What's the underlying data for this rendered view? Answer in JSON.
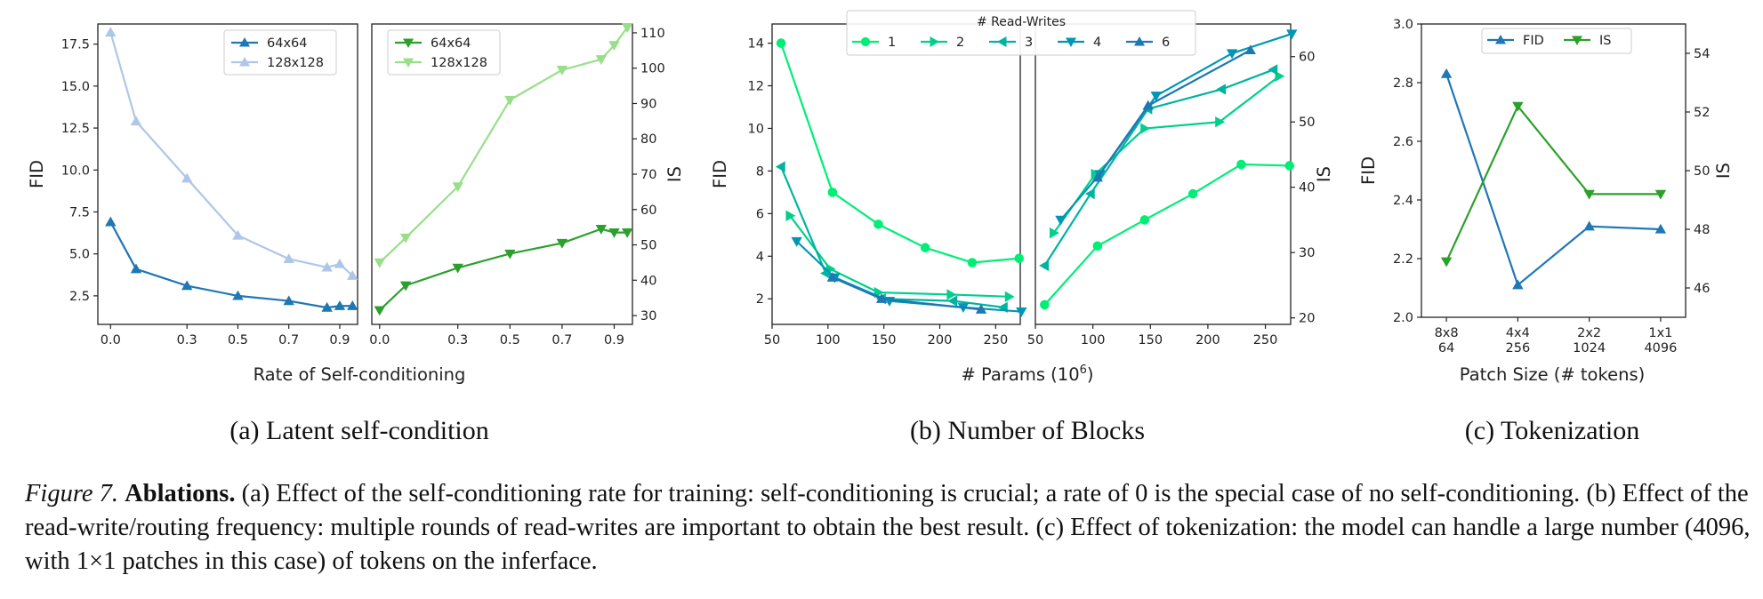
{
  "figure": {
    "label": "Figure 7.",
    "bold": "Ablations.",
    "text": "(a) Effect of the self-conditioning rate for training: self-conditioning is crucial; a rate of 0 is the special case of no self-conditioning. (b) Effect of the read-write/routing frequency: multiple rounds of read-writes are important to obtain the best result. (c) Effect of tokenization: the model can handle a large number (4096, with 1×1 patches in this case) of tokens on the inferface."
  },
  "subcaptions": [
    "(a) Latent self-condition",
    "(b) Number of Blocks",
    "(c) Tokenization"
  ],
  "chart_data": [
    {
      "id": "a-fid",
      "type": "line",
      "ylabel": "FID",
      "ylim": [
        0.8,
        18.7
      ],
      "xlim": [
        -0.05,
        0.97
      ],
      "xticks": [
        "0.0",
        "0.3",
        "0.5",
        "0.7",
        "0.9"
      ],
      "xtick_values": [
        0.0,
        0.3,
        0.5,
        0.7,
        0.9
      ],
      "yticks": [
        "2.5",
        "5.0",
        "7.5",
        "10.0",
        "12.5",
        "15.0",
        "17.5"
      ],
      "ytick_values": [
        2.5,
        5.0,
        7.5,
        10.0,
        12.5,
        15.0,
        17.5
      ],
      "legend": "top-right",
      "series": [
        {
          "name": "64x64",
          "color": "#1f77b4",
          "marker": "triangle-up",
          "x": [
            0.0,
            0.1,
            0.3,
            0.5,
            0.7,
            0.85,
            0.9,
            0.95
          ],
          "y": [
            6.9,
            4.1,
            3.1,
            2.5,
            2.2,
            1.8,
            1.9,
            1.9
          ]
        },
        {
          "name": "128x128",
          "color": "#aec7e8",
          "marker": "triangle-up",
          "x": [
            0.0,
            0.1,
            0.3,
            0.5,
            0.7,
            0.85,
            0.9,
            0.95
          ],
          "y": [
            18.2,
            12.9,
            9.5,
            6.1,
            4.7,
            4.2,
            4.4,
            3.7
          ]
        }
      ]
    },
    {
      "id": "a-is",
      "type": "line",
      "ylabel": "IS",
      "ylim": [
        27.5,
        112.5
      ],
      "xlim": [
        -0.03,
        0.97
      ],
      "xticks": [
        "0.0",
        "0.3",
        "0.5",
        "0.7",
        "0.9"
      ],
      "xtick_values": [
        0.0,
        0.3,
        0.5,
        0.7,
        0.9
      ],
      "yticks": [
        "30",
        "40",
        "50",
        "60",
        "70",
        "80",
        "90",
        "100",
        "110"
      ],
      "ytick_values": [
        30,
        40,
        50,
        60,
        70,
        80,
        90,
        100,
        110
      ],
      "legend": "top-left",
      "series": [
        {
          "name": "64x64",
          "color": "#2ca02c",
          "marker": "triangle-down",
          "x": [
            0.0,
            0.1,
            0.3,
            0.5,
            0.7,
            0.85,
            0.9,
            0.95
          ],
          "y": [
            31.5,
            38.5,
            43.5,
            47.5,
            50.5,
            54.5,
            53.5,
            53.5
          ]
        },
        {
          "name": "128x128",
          "color": "#98df8a",
          "marker": "triangle-down",
          "x": [
            0.0,
            0.1,
            0.3,
            0.5,
            0.7,
            0.85,
            0.9,
            0.95
          ],
          "y": [
            45.0,
            52.0,
            66.5,
            91.0,
            99.5,
            102.5,
            106.5,
            111.5
          ]
        }
      ]
    },
    {
      "id": "b-fid",
      "type": "line",
      "ylabel": "FID",
      "ylim": [
        0.8,
        14.9
      ],
      "xlim": [
        50,
        272
      ],
      "xticks": [
        "50",
        "100",
        "150",
        "200",
        "250"
      ],
      "xtick_values": [
        50,
        100,
        150,
        200,
        250
      ],
      "yticks": [
        "2",
        "4",
        "6",
        "8",
        "10",
        "12",
        "14"
      ],
      "ytick_values": [
        2,
        4,
        6,
        8,
        10,
        12,
        14
      ],
      "series": [
        {
          "name": "1",
          "color": "#00ee76",
          "marker": "circle",
          "x": [
            58,
            104,
            145,
            187,
            229,
            271
          ],
          "y": [
            14.0,
            7.0,
            5.5,
            4.4,
            3.7,
            3.9
          ]
        },
        {
          "name": "2",
          "color": "#00d08c",
          "marker": "triangle-right",
          "x": [
            66,
            102,
            145,
            210,
            262
          ],
          "y": [
            5.9,
            3.4,
            2.3,
            2.2,
            2.1
          ]
        },
        {
          "name": "3",
          "color": "#00b4a0",
          "marker": "triangle-left",
          "x": [
            58,
            98,
            148,
            212,
            257
          ],
          "y": [
            8.2,
            3.2,
            2.0,
            1.9,
            1.6
          ]
        },
        {
          "name": "4",
          "color": "#0096b4",
          "marker": "triangle-down",
          "x": [
            72,
            106,
            155,
            221,
            273
          ],
          "y": [
            4.7,
            3.0,
            1.9,
            1.6,
            1.4
          ]
        },
        {
          "name": "6",
          "color": "#1f77b4",
          "marker": "triangle-up",
          "x": [
            104,
            148,
            237
          ],
          "y": [
            3.0,
            2.0,
            1.5
          ]
        }
      ]
    },
    {
      "id": "b-is",
      "type": "line",
      "ylabel": "IS",
      "ylim": [
        19,
        65
      ],
      "xlim": [
        50,
        272
      ],
      "xticks": [
        "50",
        "100",
        "150",
        "200",
        "250"
      ],
      "xtick_values": [
        50,
        100,
        150,
        200,
        250
      ],
      "yticks": [
        "20",
        "30",
        "40",
        "50",
        "60"
      ],
      "ytick_values": [
        20,
        30,
        40,
        50,
        60
      ],
      "legend_title": "# Read-Writes",
      "legend": "top-center",
      "series": [
        {
          "name": "1",
          "color": "#00ee76",
          "marker": "circle",
          "x": [
            58,
            104,
            145,
            187,
            229,
            271
          ],
          "y": [
            22.0,
            31.0,
            35.0,
            39.0,
            43.5,
            43.3
          ]
        },
        {
          "name": "2",
          "color": "#00d08c",
          "marker": "triangle-right",
          "x": [
            66,
            102,
            145,
            210,
            262
          ],
          "y": [
            33.0,
            42.0,
            49.0,
            50.0,
            57.0
          ]
        },
        {
          "name": "3",
          "color": "#00b4a0",
          "marker": "triangle-left",
          "x": [
            58,
            98,
            148,
            212,
            257
          ],
          "y": [
            28.0,
            39.0,
            52.0,
            55.0,
            58.0
          ]
        },
        {
          "name": "4",
          "color": "#0096b4",
          "marker": "triangle-down",
          "x": [
            72,
            106,
            155,
            221,
            273
          ],
          "y": [
            35.0,
            42.0,
            54.0,
            60.5,
            63.5
          ]
        },
        {
          "name": "6",
          "color": "#1f77b4",
          "marker": "triangle-up",
          "x": [
            104,
            148,
            237
          ],
          "y": [
            41.5,
            52.5,
            61.0
          ]
        }
      ]
    },
    {
      "id": "c",
      "type": "line",
      "xlabel": "Patch Size (# tokens)",
      "categories": [
        "8x8\n64",
        "4x4\n256",
        "2x2\n1024",
        "1x1\n4096"
      ],
      "ylim": [
        2.0,
        3.0
      ],
      "y2lim": [
        45.0,
        55.0
      ],
      "yticks": [
        "2.0",
        "2.2",
        "2.4",
        "2.6",
        "2.8",
        "3.0"
      ],
      "ytick_values": [
        2.0,
        2.2,
        2.4,
        2.6,
        2.8,
        3.0
      ],
      "y2ticks": [
        "46",
        "48",
        "50",
        "52",
        "54"
      ],
      "y2tick_values": [
        46,
        48,
        50,
        52,
        54
      ],
      "ylabel": "FID",
      "y2label": "IS",
      "legend": "top-center",
      "series": [
        {
          "name": "FID",
          "color": "#1f77b4",
          "marker": "triangle-up",
          "axis": "left",
          "values": [
            2.83,
            2.11,
            2.31,
            2.3
          ]
        },
        {
          "name": "IS",
          "color": "#2ca02c",
          "marker": "triangle-down",
          "axis": "right",
          "values": [
            46.9,
            52.2,
            49.2,
            49.2
          ]
        }
      ]
    }
  ],
  "axis_labels": {
    "a_x": "Rate of Self-conditioning",
    "b_x": "# Params (10",
    "b_x_sup": "6",
    "b_x_close": ")"
  }
}
